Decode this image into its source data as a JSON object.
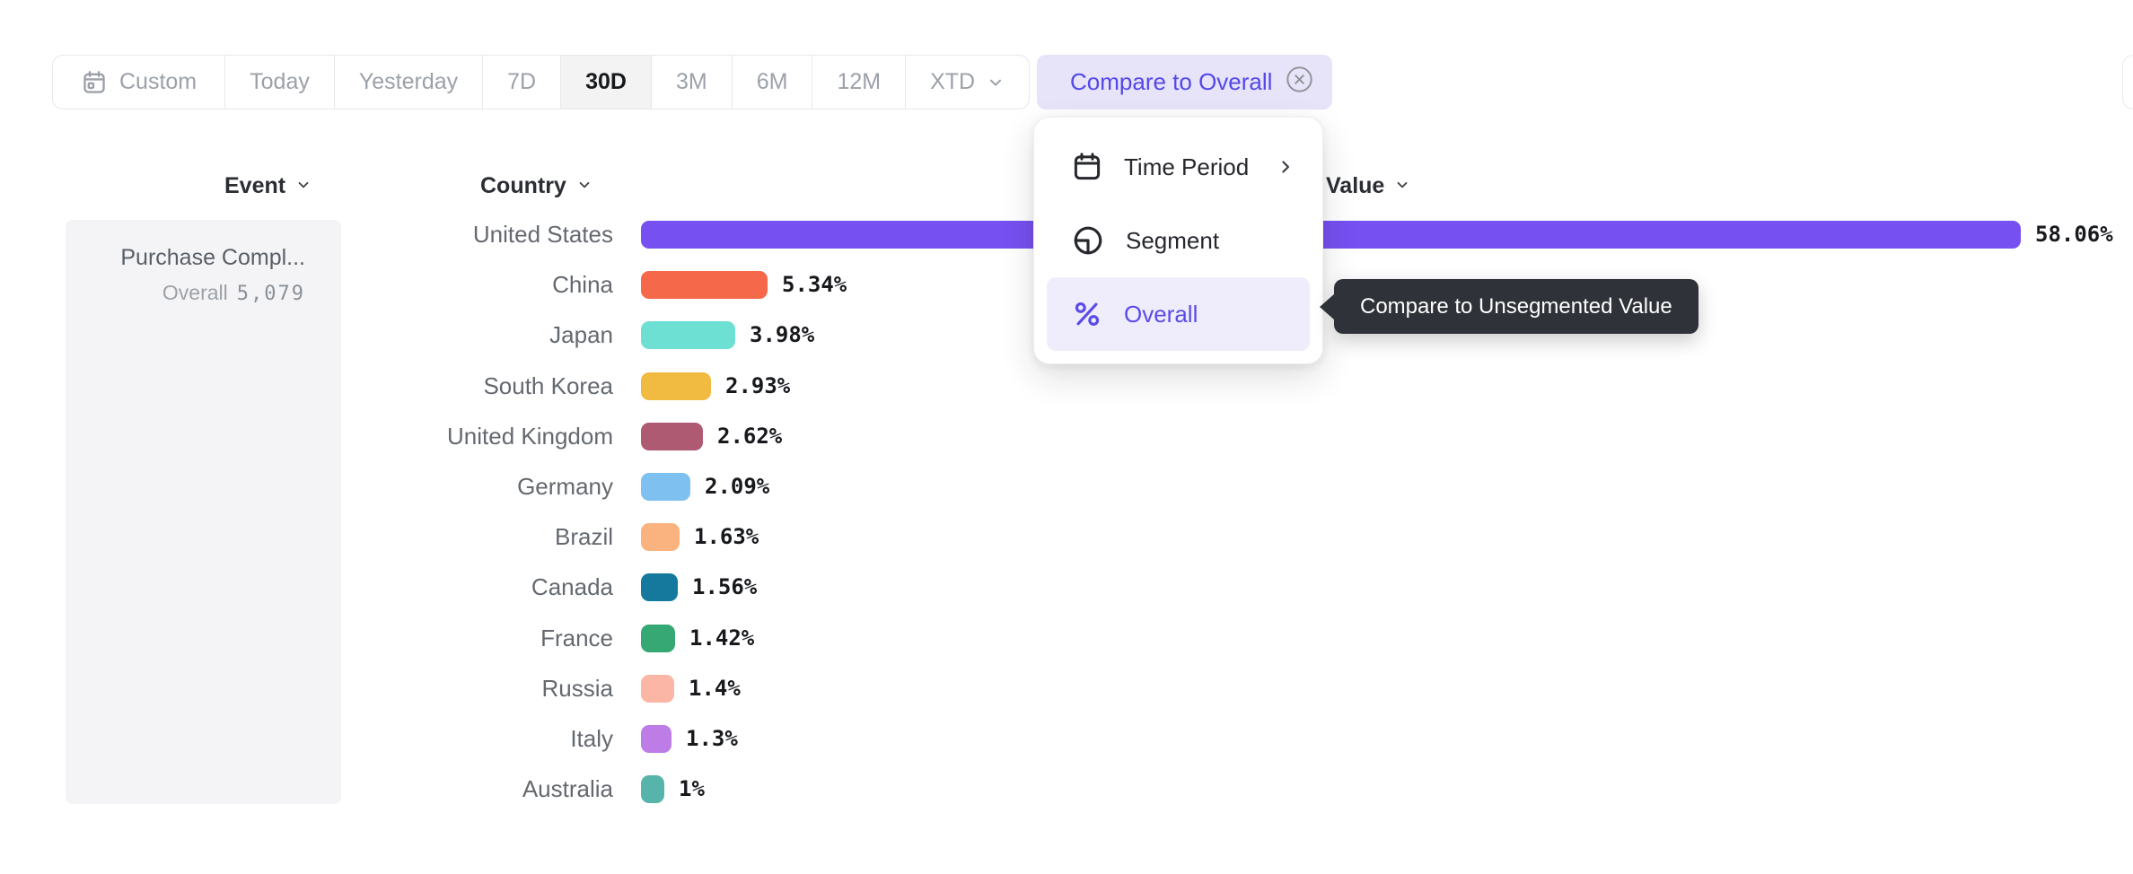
{
  "toolbar": {
    "periods": [
      {
        "label": "Custom",
        "icon": "calendar"
      },
      {
        "label": "Today"
      },
      {
        "label": "Yesterday"
      },
      {
        "label": "7D"
      },
      {
        "label": "30D",
        "selected": true
      },
      {
        "label": "3M"
      },
      {
        "label": "6M"
      },
      {
        "label": "12M"
      },
      {
        "label": "XTD",
        "chevron": true
      }
    ],
    "compare_label": "Compare to Overall"
  },
  "columns": {
    "event": "Event",
    "country": "Country",
    "value": "Value"
  },
  "event_panel": {
    "name": "Purchase Compl...",
    "overall_label": "Overall",
    "overall_value": "5,079"
  },
  "chart_data": {
    "type": "bar",
    "orientation": "horizontal",
    "title": "",
    "xlabel": "Value",
    "ylabel": "Country",
    "xlim": [
      0,
      60
    ],
    "unit": "percent",
    "grid": false,
    "categories": [
      "United States",
      "China",
      "Japan",
      "South Korea",
      "United Kingdom",
      "Germany",
      "Brazil",
      "Canada",
      "France",
      "Russia",
      "Italy",
      "Australia"
    ],
    "values": [
      58.06,
      5.34,
      3.98,
      2.93,
      2.62,
      2.09,
      1.63,
      1.56,
      1.42,
      1.4,
      1.3,
      1.0
    ],
    "value_labels": [
      "58.06%",
      "5.34%",
      "3.98%",
      "2.93%",
      "2.62%",
      "2.09%",
      "1.63%",
      "1.56%",
      "1.42%",
      "1.4%",
      "1.3%",
      "1%"
    ],
    "bar_colors": [
      "#7650F0",
      "#F5684A",
      "#6EDFD3",
      "#F1BB41",
      "#AE5A73",
      "#7EC0EF",
      "#FAB37F",
      "#15799E",
      "#36A873",
      "#FBB6A6",
      "#BE7DE6",
      "#57B4AB"
    ]
  },
  "menu": {
    "items": [
      {
        "icon": "calendar",
        "label": "Time Period",
        "submenu": true
      },
      {
        "icon": "segment",
        "label": "Segment"
      },
      {
        "icon": "percent",
        "label": "Overall",
        "selected": true
      }
    ]
  },
  "tooltip": {
    "text": "Compare to Unsegmented Value"
  },
  "colors": {
    "accent": "#5348E8",
    "pill_bg": "#E7E3F9",
    "menu_selected_bg": "#EFECFB",
    "tooltip_bg": "#2F3238",
    "panel_bg": "#F4F4F6",
    "selected_period_bg": "#F3F3F4",
    "toolbar_text": "#9CA1A9",
    "label_text": "#64696F",
    "value_text": "#17191D"
  }
}
